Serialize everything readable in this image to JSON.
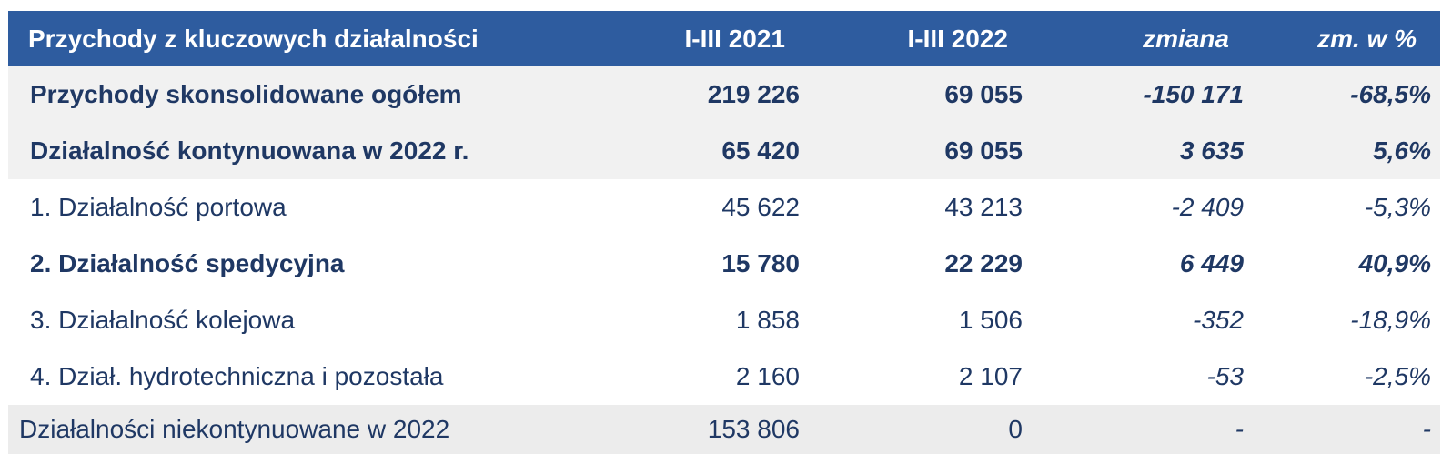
{
  "table": {
    "title": "Przychody z kluczowych działalności",
    "header": {
      "label": "Przychody z kluczowych działalności",
      "col_2021": "I-III 2021",
      "col_2022": "I-III 2022",
      "col_change": "zmiana",
      "col_change_pct": "zm. w %"
    },
    "rows": [
      {
        "label": "Przychody skonsolidowane ogółem",
        "v2021": "219 226",
        "v2022": "69 055",
        "change": "-150 171",
        "change_pct": "-68,5%"
      },
      {
        "label": "Działalność kontynuowana w 2022 r.",
        "v2021": "65 420",
        "v2022": "69 055",
        "change": "3 635",
        "change_pct": "5,6%"
      },
      {
        "label": "1. Działalność portowa",
        "v2021": "45 622",
        "v2022": "43 213",
        "change": "-2 409",
        "change_pct": "-5,3%"
      },
      {
        "label": "2. Działalność spedycyjna",
        "v2021": "15 780",
        "v2022": "22 229",
        "change": "6 449",
        "change_pct": "40,9%"
      },
      {
        "label": "3. Działalność kolejowa",
        "v2021": "1 858",
        "v2022": "1 506",
        "change": "-352",
        "change_pct": "-18,9%"
      },
      {
        "label": "4. Dział. hydrotechniczna i pozostała",
        "v2021": "2 160",
        "v2022": "2 107",
        "change": "-53",
        "change_pct": "-2,5%"
      },
      {
        "label": "Działalności niekontynuowane w 2022",
        "v2021": "153 806",
        "v2022": "0",
        "change": "-",
        "change_pct": "-"
      }
    ],
    "colors": {
      "header_bg": "#2E5C9F",
      "header_text": "#FFFFFF",
      "body_text": "#1F3864",
      "band_gray": "#F1F1F1",
      "footer_gray": "#ECECEC"
    }
  }
}
